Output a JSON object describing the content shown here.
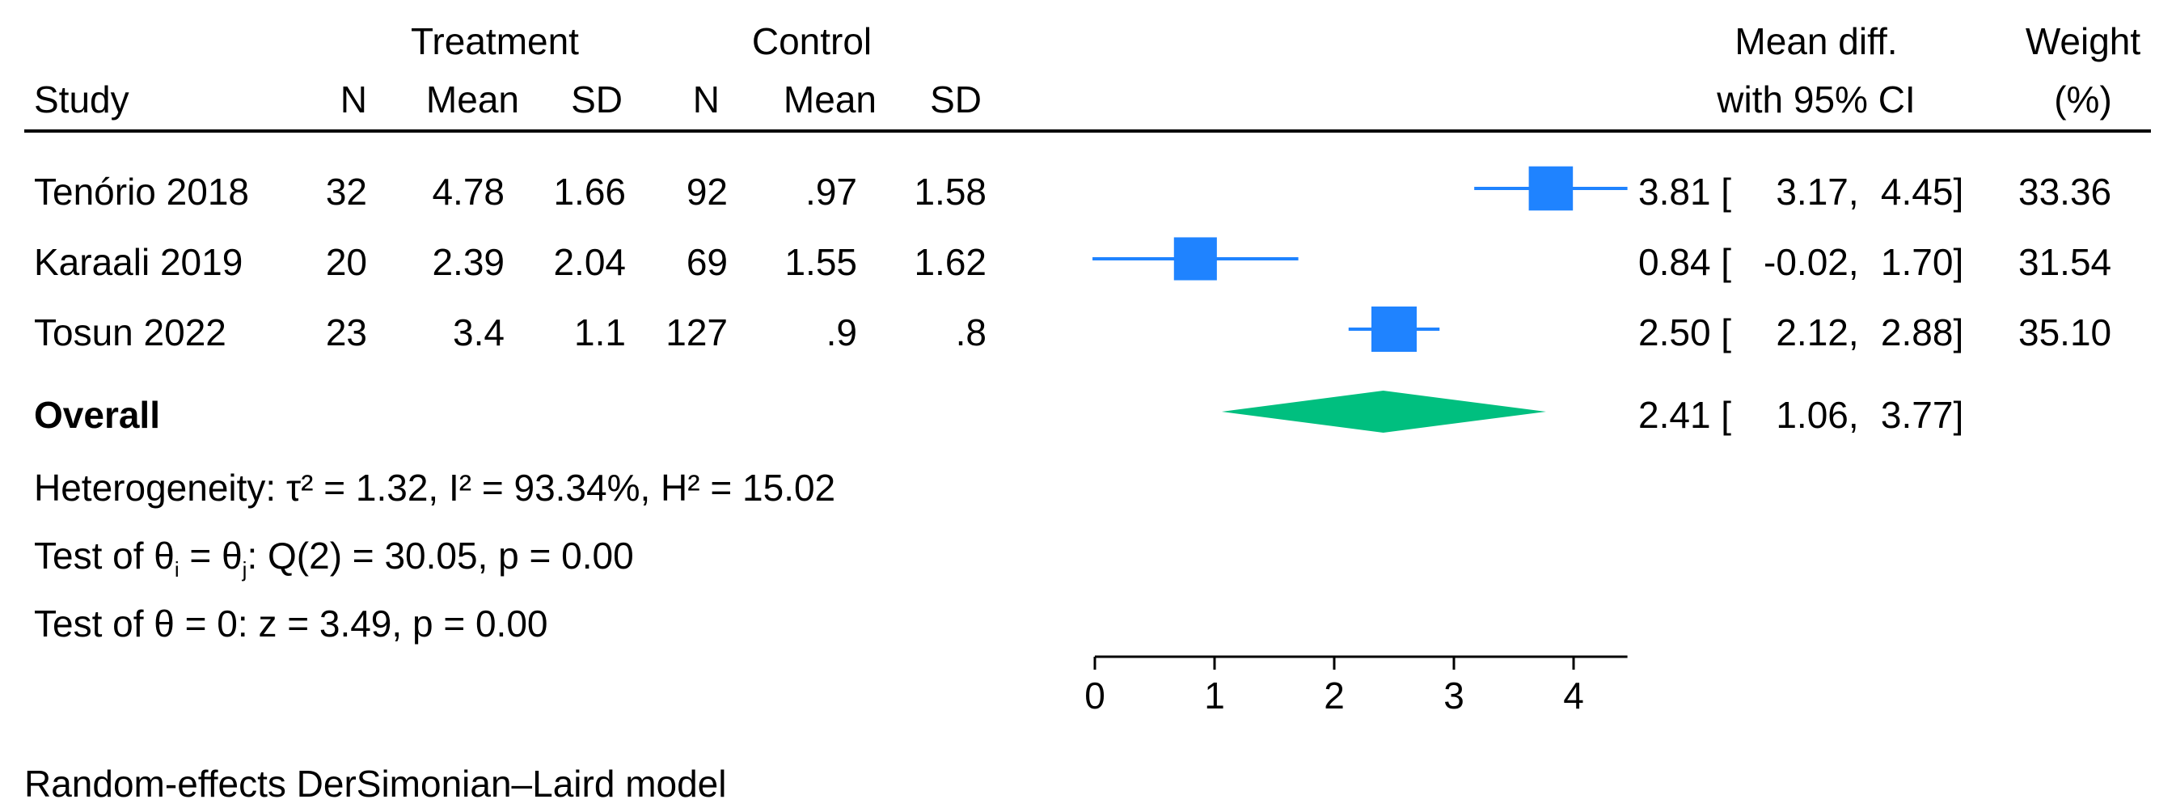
{
  "header": {
    "group_treatment": "Treatment",
    "group_control": "Control",
    "study": "Study",
    "n": "N",
    "mean": "Mean",
    "sd": "SD",
    "effect_line1": "Mean diff.",
    "effect_line2": "with 95% CI",
    "weight_line1": "Weight",
    "weight_line2": "(%)"
  },
  "studies": [
    {
      "name": "Tenório 2018",
      "t_n": "32",
      "t_mean": "4.78",
      "t_sd": "1.66",
      "c_n": "92",
      "c_mean": ".97",
      "c_sd": "1.58",
      "md": "3.81",
      "lo": "3.17",
      "hi": "4.45",
      "weight": "33.36"
    },
    {
      "name": "Karaali 2019",
      "t_n": "20",
      "t_mean": "2.39",
      "t_sd": "2.04",
      "c_n": "69",
      "c_mean": "1.55",
      "c_sd": "1.62",
      "md": "0.84",
      "lo": "-0.02",
      "hi": "1.70",
      "weight": "31.54"
    },
    {
      "name": "Tosun 2022",
      "t_n": "23",
      "t_mean": "3.4",
      "t_sd": "1.1",
      "c_n": "127",
      "c_mean": ".9",
      "c_sd": ".8",
      "md": "2.50",
      "lo": "2.12",
      "hi": "2.88",
      "weight": "35.10"
    }
  ],
  "overall": {
    "label": "Overall",
    "md": "2.41",
    "lo": "1.06",
    "hi": "3.77"
  },
  "stats": {
    "heterogeneity": "Heterogeneity: τ² = 1.32, I² = 93.34%, H² = 15.02",
    "test_homog_prefix": "Test of θ",
    "test_homog_sub_i": "i",
    "test_homog_mid": " = θ",
    "test_homog_sub_j": "j",
    "test_homog_suffix": ": Q(2) = 30.05, p = 0.00",
    "test_zero": "Test of θ = 0: z = 3.49, p = 0.00"
  },
  "footnote": "Random-effects DerSimonian–Laird model",
  "chart_data": {
    "type": "forest",
    "xlim": [
      0,
      4.45
    ],
    "xticks": [
      0,
      1,
      2,
      3,
      4
    ],
    "xtick_labels": [
      "0",
      "1",
      "2",
      "3",
      "4"
    ],
    "series": [
      {
        "name": "Tenório 2018",
        "estimate": 3.81,
        "ci": [
          3.17,
          4.45
        ],
        "weight": 33.36
      },
      {
        "name": "Karaali 2019",
        "estimate": 0.84,
        "ci": [
          -0.02,
          1.7
        ],
        "weight": 31.54
      },
      {
        "name": "Tosun 2022",
        "estimate": 2.5,
        "ci": [
          2.12,
          2.88
        ],
        "weight": 35.1
      }
    ],
    "overall": {
      "estimate": 2.41,
      "ci": [
        1.06,
        3.77
      ]
    },
    "colors": {
      "study": "#1f83ff",
      "overall": "#00bf7f",
      "axis": "#000000"
    }
  }
}
